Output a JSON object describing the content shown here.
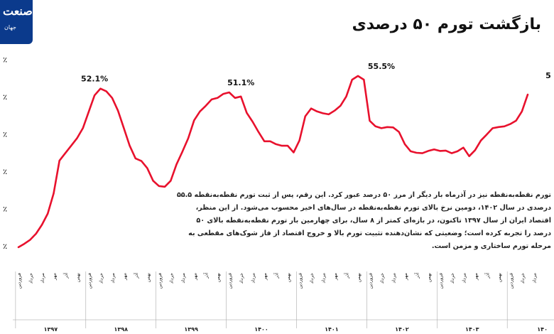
{
  "header": {
    "logo_text": "صنعت",
    "logo_subtext": "جهان",
    "title": "بازگشت تورم ۵۰ درصدی"
  },
  "note": {
    "lines": [
      "تورم نقطه‌به‌نقطه نیز در آذرماه بار دیگر از مرز ۵۰ درصد عبور کرد. این رقم، پس از ثبت تورم نقطه‌به‌نقطه ۵۵.۵",
      "درصدی در سال ۱۴۰۲، دومین نرخ بالای تورم نقطه‌به‌نقطه در سال‌های اخیر محسوب می‌شود. از این منظر،",
      "اقتصاد ایران از سال ۱۳۹۷ تاکنون، در بازه‌ای کمتر از ۸ سال، برای چهارمین بار تورم نقطه‌به‌نقطه بالای ۵۰",
      "درصد را تجربه کرده است؛ وضعیتی که نشان‌دهنده تثبیت تورم بالا و خروج اقتصاد از فاز شوک‌های مقطعی به",
      "مرحله تورم ساختاری و مزمن است."
    ]
  },
  "colors": {
    "line": "#e8112d",
    "logo_bg": "#0b3a8c",
    "grid": "#cfcfcf"
  },
  "chart_data": {
    "type": "line",
    "title": "بازگشت تورم ۵۰ درصدی",
    "ylim": [
      5,
      61
    ],
    "y_ticks": [
      10,
      20,
      30,
      40,
      50,
      60
    ],
    "y_tick_labels": [
      "٪",
      "٪",
      "٪",
      "٪",
      "٪",
      "٪"
    ],
    "x_tick_labels": [
      "فروردین",
      "اردیبهشت",
      "خرداد",
      "تیر",
      "مرداد",
      "شهریور",
      "مهر",
      "آبان",
      "آذر",
      "دی",
      "بهمن",
      "اسفند"
    ],
    "shown_month_labels": [
      "فروردین",
      "خرداد",
      "مرداد",
      "مهر",
      "آذر",
      "بهمن"
    ],
    "years": [
      "۱۳۹۷",
      "۱۳۹۸",
      "۱۳۹۹",
      "۱۴۰۰",
      "۱۴۰۱",
      "۱۴۰۲",
      "۱۴۰۳",
      "۱۴۰"
    ],
    "x_range": [
      0,
      91
    ],
    "annotations": [
      {
        "x": 13,
        "y": 52.1,
        "label": "52.1%"
      },
      {
        "x": 38,
        "y": 51.1,
        "label": "51.1%"
      },
      {
        "x": 62,
        "y": 55.5,
        "label": "55.5%"
      },
      {
        "x": 91,
        "y": 53,
        "label": "5"
      }
    ],
    "series": [
      {
        "values": [
          9.6,
          10.5,
          11.6,
          13.2,
          15.6,
          18.6,
          24.0,
          32.8,
          34.8,
          36.8,
          38.8,
          41.5,
          45.9,
          50.3,
          52.1,
          51.4,
          49.6,
          46.2,
          41.5,
          36.8,
          33.4,
          32.7,
          30.8,
          27.4,
          26.0,
          25.8,
          27.4,
          31.8,
          35.2,
          38.8,
          43.6,
          46.0,
          47.5,
          49.2,
          49.6,
          50.7,
          51.1,
          49.6,
          50.0,
          45.6,
          43.2,
          40.5,
          38.0,
          38.0,
          37.2,
          36.8,
          36.8,
          35.0,
          38.2,
          44.7,
          46.8,
          46.0,
          45.5,
          45.2,
          46.2,
          47.5,
          50.0,
          54.5,
          55.5,
          54.5,
          43.5,
          42.0,
          41.5,
          41.8,
          41.7,
          40.5,
          37.2,
          35.3,
          34.9,
          34.8,
          35.4,
          35.8,
          35.4,
          35.5,
          34.8,
          35.3,
          36.3,
          34.0,
          35.6,
          38.2,
          39.8,
          41.5,
          41.8,
          42.0,
          42.6,
          43.5,
          46.0,
          50.5
        ]
      }
    ]
  }
}
